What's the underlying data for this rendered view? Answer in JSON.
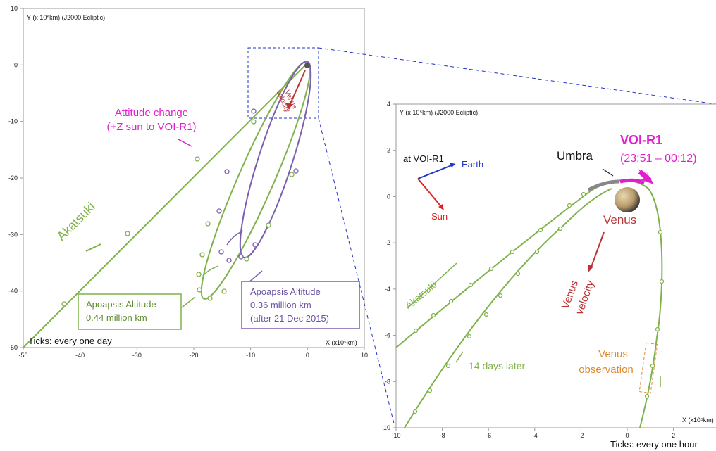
{
  "left_plot": {
    "y_axis_label": "Y (x 10⁵km) (J2000 Ecliptic)",
    "x_axis_label": "X (x10⁵km)",
    "x_ticks": [
      -50,
      -40,
      -30,
      -20,
      -10,
      0,
      10
    ],
    "y_ticks": [
      10,
      0,
      -10,
      -20,
      -30,
      -40,
      -50
    ],
    "attitude_change": [
      "Attitude change",
      "(+Z sun to VOI-R1)"
    ],
    "akatsuki": "Akatsuki",
    "venus_velocity": [
      "Venus",
      "velocity"
    ],
    "apoapsis_green": [
      "Apoapsis Altitude",
      "0.44 million km"
    ],
    "apoapsis_purple": [
      "Apoapsis Altitude",
      "0.36 million km",
      "(after 21 Dec 2015)"
    ],
    "ticks_note": "Ticks: every one day"
  },
  "right_plot": {
    "y_axis_label": "Y (x 10⁵km) (J2000 Ecliptic)",
    "x_axis_label": "X (x10⁵km)",
    "x_ticks": [
      -10,
      -8,
      -6,
      -4,
      -2,
      0,
      2
    ],
    "y_ticks": [
      4,
      2,
      0,
      -2,
      -4,
      -6,
      -8,
      -10
    ],
    "at_voi": "at VOI-R1",
    "earth": "Earth",
    "sun": "Sun",
    "umbra": "Umbra",
    "voi_r1": "VOI-R1",
    "voi_time": "(23:51 – 00:12)",
    "venus": "Venus",
    "venus_velocity": [
      "Venus",
      "velocity"
    ],
    "akatsuki": "Akatsuki",
    "later": "14 days later",
    "venus_observation": [
      "Venus",
      "observation"
    ],
    "ticks_note": "Ticks: every one hour"
  }
}
